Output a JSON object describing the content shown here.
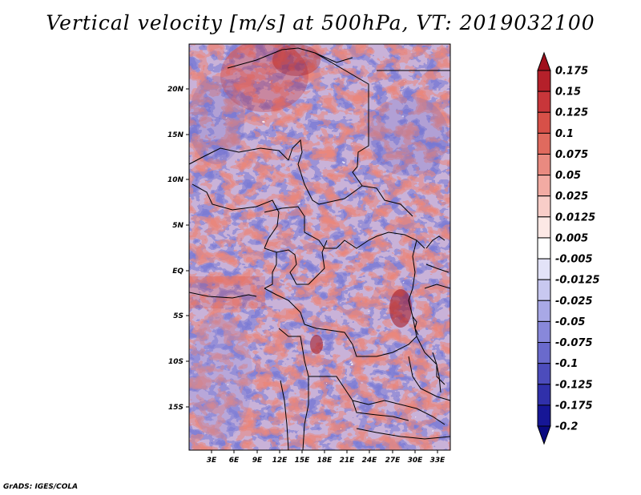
{
  "title": "Vertical velocity [m/s] at 500hPa, VT: 2019032100",
  "footer": "GrADS: IGES/COLA",
  "map": {
    "lat_labels": [
      "20N",
      "15N",
      "10N",
      "5N",
      "EQ",
      "5S",
      "10S",
      "15S"
    ],
    "lon_labels": [
      "3E",
      "6E",
      "9E",
      "12E",
      "15E",
      "18E",
      "21E",
      "24E",
      "27E",
      "30E",
      "33E"
    ]
  },
  "colorbar": {
    "labels": [
      "0.175",
      "0.15",
      "0.125",
      "0.1",
      "0.075",
      "0.05",
      "0.025",
      "0.0125",
      "0.005",
      "-0.005",
      "-0.0125",
      "-0.025",
      "-0.05",
      "-0.075",
      "-0.1",
      "-0.125",
      "-0.175",
      "-0.2"
    ],
    "colors": [
      "#a0101c",
      "#b5202a",
      "#c8363a",
      "#d75048",
      "#e06a5e",
      "#e98a80",
      "#f2aba3",
      "#f8cdc8",
      "#fce8e5",
      "#ffffff",
      "#e3e3f8",
      "#c8c8f0",
      "#a8a8e6",
      "#8888da",
      "#6a6acc",
      "#4c4cbc",
      "#3030aa",
      "#161696",
      "#0a0a80"
    ]
  }
}
